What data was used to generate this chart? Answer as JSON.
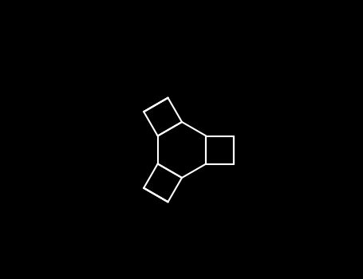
{
  "bg_color": "#000000",
  "line_color": "#ffffff",
  "o_color": "#ff0000",
  "linewidth": 1.5,
  "figsize": [
    4.55,
    3.5
  ],
  "dpi": 100
}
